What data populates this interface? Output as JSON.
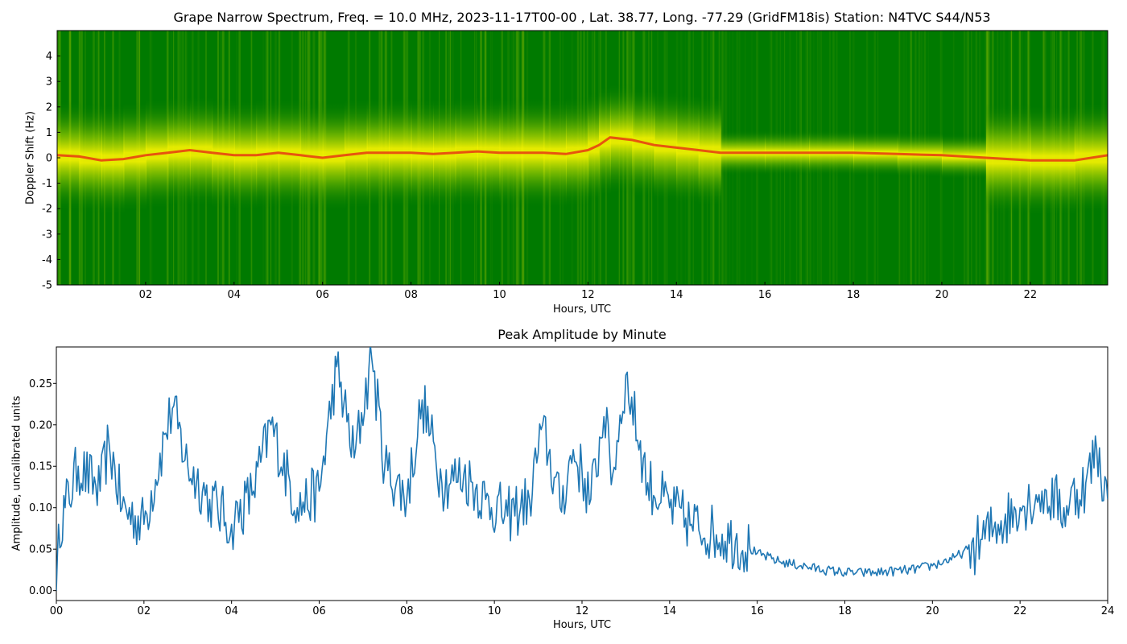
{
  "chart_data": [
    {
      "type": "heatmap",
      "title": "Grape Narrow Spectrum, Freq. = 10.0 MHz, 2023-11-17T00-00 , Lat.  38.77, Long. -77.29 (GridFM18is) Station: N4TVC S44/N53",
      "xlabel": "Hours, UTC",
      "ylabel": "Doppler Shift (Hz)",
      "x_ticks": [
        "02",
        "04",
        "06",
        "08",
        "10",
        "12",
        "14",
        "16",
        "18",
        "20",
        "22"
      ],
      "y_ticks": [
        "4",
        "3",
        "2",
        "1",
        "0",
        "-1",
        "-2",
        "-3",
        "-4",
        "-5"
      ],
      "xlim": [
        0,
        23.75
      ],
      "ylim": [
        -5,
        5
      ],
      "colors": {
        "background": "#007a00",
        "mid": "#f5f500",
        "peak": "#e83a10"
      },
      "trace": {
        "hours": [
          0,
          0.5,
          1,
          1.5,
          2,
          2.5,
          3,
          3.5,
          4,
          4.5,
          5,
          5.5,
          6,
          6.5,
          7,
          7.5,
          8,
          8.5,
          9,
          9.5,
          10,
          10.5,
          11,
          11.5,
          12,
          12.25,
          12.5,
          13,
          13.5,
          14,
          14.5,
          15,
          16,
          17,
          18,
          19,
          20,
          21,
          22,
          23,
          23.75
        ],
        "doppler_hz": [
          0.1,
          0.05,
          -0.1,
          -0.05,
          0.1,
          0.2,
          0.3,
          0.2,
          0.1,
          0.1,
          0.2,
          0.1,
          0.0,
          0.1,
          0.2,
          0.2,
          0.2,
          0.15,
          0.2,
          0.25,
          0.2,
          0.2,
          0.2,
          0.15,
          0.3,
          0.5,
          0.8,
          0.7,
          0.5,
          0.4,
          0.3,
          0.2,
          0.2,
          0.2,
          0.2,
          0.15,
          0.1,
          0.0,
          -0.1,
          -0.1,
          0.1
        ]
      }
    },
    {
      "type": "line",
      "title": "Peak Amplitude by Minute",
      "xlabel": "Hours, UTC",
      "ylabel": "Amplitude, uncalibrated units",
      "x_ticks": [
        "00",
        "02",
        "04",
        "06",
        "08",
        "10",
        "12",
        "14",
        "16",
        "18",
        "20",
        "22",
        "24"
      ],
      "y_ticks": [
        "0.00",
        "0.05",
        "0.10",
        "0.15",
        "0.20",
        "0.25"
      ],
      "xlim": [
        0,
        24
      ],
      "ylim": [
        -0.012,
        0.294
      ],
      "line_color": "#1f77b4",
      "x": [
        0,
        0.05,
        0.2,
        0.5,
        1.0,
        1.2,
        1.5,
        2.0,
        2.5,
        2.65,
        3.0,
        3.5,
        4.0,
        4.5,
        4.9,
        5.5,
        6.0,
        6.4,
        6.8,
        7.2,
        7.5,
        8.0,
        8.35,
        8.8,
        9.3,
        9.8,
        10.3,
        10.8,
        11.1,
        11.5,
        11.8,
        12.2,
        12.5,
        12.7,
        13.0,
        13.5,
        14.0,
        14.5,
        15.0,
        15.5,
        16.0,
        16.5,
        17.0,
        17.5,
        18.0,
        18.5,
        19.0,
        19.5,
        20.0,
        20.5,
        21.0,
        21.5,
        22.0,
        22.5,
        23.0,
        23.5,
        23.75,
        24.0
      ],
      "y": [
        0.0,
        0.08,
        0.1,
        0.15,
        0.12,
        0.18,
        0.1,
        0.08,
        0.19,
        0.22,
        0.15,
        0.11,
        0.08,
        0.12,
        0.2,
        0.1,
        0.12,
        0.27,
        0.16,
        0.28,
        0.15,
        0.11,
        0.23,
        0.13,
        0.14,
        0.11,
        0.09,
        0.11,
        0.2,
        0.1,
        0.17,
        0.11,
        0.21,
        0.14,
        0.26,
        0.13,
        0.1,
        0.08,
        0.07,
        0.06,
        0.045,
        0.035,
        0.03,
        0.025,
        0.022,
        0.021,
        0.023,
        0.025,
        0.03,
        0.04,
        0.055,
        0.08,
        0.1,
        0.12,
        0.1,
        0.13,
        0.17,
        0.11
      ]
    }
  ]
}
